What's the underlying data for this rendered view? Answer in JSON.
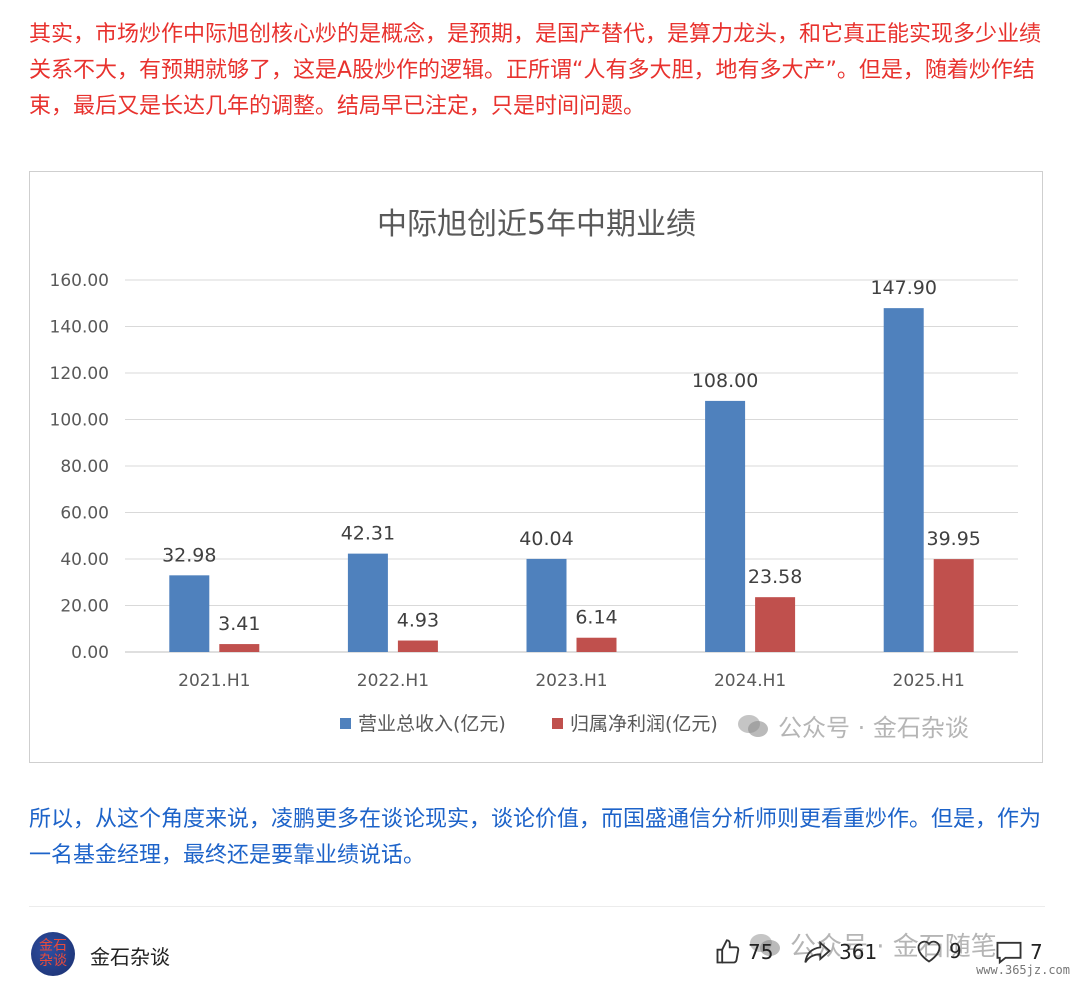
{
  "article": {
    "para_top": "其实，市场炒作中际旭创核心炒的是概念，是预期，是国产替代，是算力龙头，和它真正能实现多少业绩关系不大，有预期就够了，这是A股炒作的逻辑。正所谓“人有多大胆，地有多大产”。但是，随着炒作结束，最后又是长达几年的调整。结局早已注定，只是时间问题。",
    "para_bottom": "所以，从这个角度来说，凌鹏更多在谈论现实，谈论价值，而国盛通信分析师则更看重炒作。但是，作为一名基金经理，最终还是要靠业绩说话。"
  },
  "chart_data": {
    "type": "bar",
    "title": "中际旭创近5年中期业绩",
    "categories": [
      "2021.H1",
      "2022.H1",
      "2023.H1",
      "2024.H1",
      "2025.H1"
    ],
    "series": [
      {
        "name": "营业总收入(亿元)",
        "values": [
          32.98,
          42.31,
          40.04,
          108.0,
          147.9
        ],
        "labels": [
          "32.98",
          "42.31",
          "40.04",
          "108.00",
          "147.90"
        ],
        "color": "#4f81bd"
      },
      {
        "name": "归属净利润(亿元)",
        "values": [
          3.41,
          4.93,
          6.14,
          23.58,
          39.95
        ],
        "labels": [
          "3.41",
          "4.93",
          "6.14",
          "23.58",
          "39.95"
        ],
        "color": "#c0504d"
      }
    ],
    "ylim": [
      0,
      160
    ],
    "yticks": [
      "0.00",
      "20.00",
      "40.00",
      "60.00",
      "80.00",
      "100.00",
      "120.00",
      "140.00",
      "160.00"
    ],
    "grid": true,
    "legend": "bottom"
  },
  "watermarks": {
    "chart": "公众号 · 金石杂谈",
    "footer": "公众号 · 金石随笔",
    "site": "www.365jz.com"
  },
  "footer": {
    "avatar_text": "金石杂谈",
    "author": "金石杂谈",
    "likes": "75",
    "shares": "361",
    "favorites": "9",
    "comments": "7"
  }
}
